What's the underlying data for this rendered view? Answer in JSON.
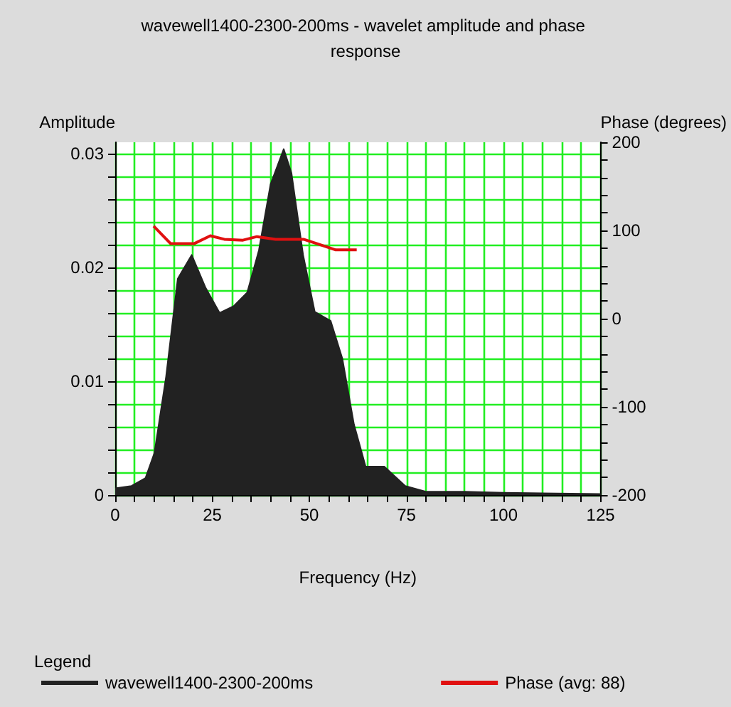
{
  "chart_data": {
    "type": "area",
    "title": "wavewell1400-2300-200ms - wavelet amplitude and phase response",
    "xlabel": "Frequency (Hz)",
    "ylabel": "Amplitude",
    "y2label": "Phase (degrees)",
    "legend_title": "Legend",
    "legend": "bottom",
    "grid": true,
    "xlim": [
      0,
      125
    ],
    "xticks": [
      0,
      {
        "value": 5,
        "label": null
      },
      {
        "value": 10,
        "label": null
      },
      {
        "value": 15,
        "label": null
      },
      {
        "value": 20,
        "label": null
      },
      25,
      {
        "value": 30,
        "label": null
      },
      {
        "value": 35,
        "label": null
      },
      {
        "value": 40,
        "label": null
      },
      {
        "value": 45,
        "label": null
      },
      50,
      {
        "value": 55,
        "label": null
      },
      {
        "value": 60,
        "label": null
      },
      {
        "value": 65,
        "label": null
      },
      {
        "value": 70,
        "label": null
      },
      75,
      {
        "value": 80,
        "label": null
      },
      {
        "value": 85,
        "label": null
      },
      {
        "value": 90,
        "label": null
      },
      {
        "value": 95,
        "label": null
      },
      100,
      {
        "value": 105,
        "label": null
      },
      {
        "value": 110,
        "label": null
      },
      {
        "value": 115,
        "label": null
      },
      {
        "value": 120,
        "label": null
      },
      125
    ],
    "ylim": [
      0,
      0.031
    ],
    "yticks": [
      0,
      {
        "value": 0.002,
        "label": null
      },
      {
        "value": 0.004,
        "label": null
      },
      {
        "value": 0.006,
        "label": null
      },
      {
        "value": 0.008,
        "label": null
      },
      0.01,
      {
        "value": 0.012,
        "label": null
      },
      {
        "value": 0.014,
        "label": null
      },
      {
        "value": 0.016,
        "label": null
      },
      {
        "value": 0.018,
        "label": null
      },
      0.02,
      {
        "value": 0.022,
        "label": null
      },
      {
        "value": 0.024,
        "label": null
      },
      {
        "value": 0.026,
        "label": null
      },
      {
        "value": 0.028,
        "label": null
      },
      0.03
    ],
    "y2lim": [
      -200,
      200
    ],
    "y2ticks": [
      -200,
      {
        "value": -180,
        "label": null
      },
      {
        "value": -160,
        "label": null
      },
      {
        "value": -140,
        "label": null
      },
      {
        "value": -120,
        "label": null
      },
      -100,
      {
        "value": -80,
        "label": null
      },
      {
        "value": -60,
        "label": null
      },
      {
        "value": -40,
        "label": null
      },
      {
        "value": -20,
        "label": null
      },
      0,
      {
        "value": 20,
        "label": null
      },
      {
        "value": 40,
        "label": null
      },
      {
        "value": 60,
        "label": null
      },
      {
        "value": 80,
        "label": null
      },
      100,
      {
        "value": 120,
        "label": null
      },
      {
        "value": 140,
        "label": null
      },
      {
        "value": 160,
        "label": null
      },
      {
        "value": 180,
        "label": null
      },
      200
    ],
    "series": [
      {
        "name": "wavewell1400-2300-200ms",
        "color": "#222222",
        "x": [
          0,
          4.2,
          7.8,
          10.1,
          13.1,
          16.1,
          19.7,
          23.3,
          26.9,
          30.5,
          34,
          37,
          40,
          43.4,
          45.4,
          48.4,
          51.4,
          55.5,
          58.5,
          61.5,
          64.5,
          69.3,
          74.7,
          80,
          90,
          100,
          125
        ],
        "values": [
          0.0006,
          0.0008,
          0.0015,
          0.0037,
          0.0104,
          0.019,
          0.0211,
          0.0182,
          0.016,
          0.0166,
          0.0178,
          0.0215,
          0.0273,
          0.0304,
          0.0283,
          0.0211,
          0.0161,
          0.0153,
          0.012,
          0.0062,
          0.0025,
          0.0025,
          0.0008,
          0.0003,
          0.0003,
          0.0002,
          0.0001
        ]
      },
      {
        "name": "Phase (avg: 88)",
        "type": "line",
        "axis": "y2",
        "color": "#e01010",
        "x": [
          9.9,
          14.3,
          20.3,
          24.5,
          28.1,
          32.9,
          36.5,
          41.3,
          48.5,
          52,
          56.8,
          62.2
        ],
        "values": [
          105,
          85,
          85,
          94,
          90,
          89,
          93,
          90,
          90,
          85,
          78,
          78
        ]
      }
    ]
  }
}
